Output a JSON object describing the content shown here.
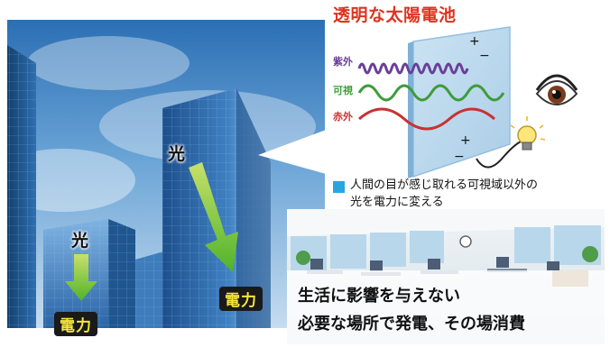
{
  "title": "透明な太陽電池",
  "wavelength_labels": {
    "uv": "紫外",
    "visible": "可視",
    "infrared": "赤外"
  },
  "signs": {
    "plus": "+",
    "minus": "−"
  },
  "note_lines": [
    "人間の目が感じ取れる可視域以外の",
    "光を電力に変える"
  ],
  "building_labels": {
    "light": "光",
    "power": "電力"
  },
  "caption_lines": [
    "生活に影響を与えない",
    "必要な場所で発電、その場消費"
  ],
  "colors": {
    "title": "#e0321f",
    "uv": "#6a3f97",
    "visible": "#3e9c3a",
    "infrared": "#c83232",
    "note_square": "#2aa6de",
    "badge_text": "#f5e63c"
  }
}
